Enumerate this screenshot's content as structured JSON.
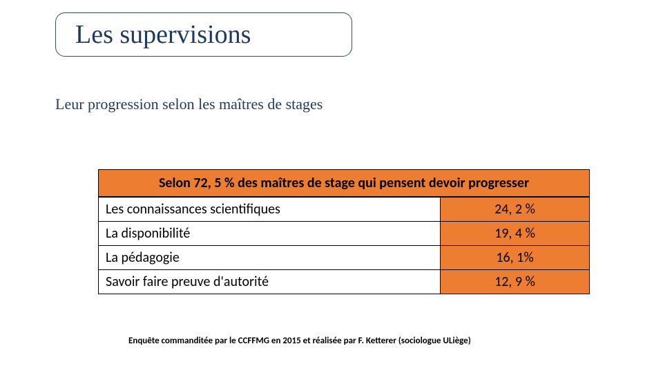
{
  "title": "Les supervisions",
  "subtitle": "Leur progression selon les maîtres de stages",
  "table": {
    "header": "Selon 72, 5 % des maîtres de stage qui pensent devoir progresser",
    "rows": [
      {
        "label": "Les connaissances scientifiques",
        "value": "24, 2 %"
      },
      {
        "label": "La disponibilité",
        "value": "19, 4 %"
      },
      {
        "label": "La pédagogie",
        "value": "16, 1%"
      },
      {
        "label": "Savoir faire preuve d'autorité",
        "value": "12, 9 %"
      }
    ]
  },
  "footnote": "Enquête commanditée par le CCFFMG en 2015 et réalisée par F. Ketterer (sociologue ULiège)",
  "colors": {
    "title_text": "#1f3a5f",
    "title_border": "#2f4f6f",
    "accent_bg": "#ec7d31",
    "table_border": "#000000",
    "page_bg": "#ffffff"
  }
}
